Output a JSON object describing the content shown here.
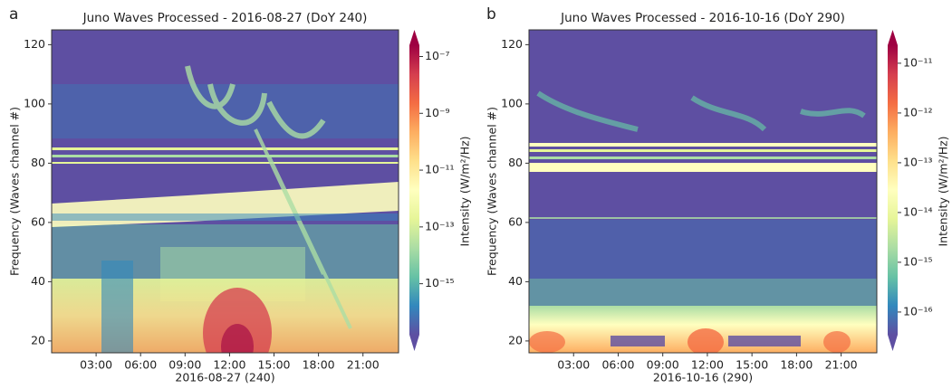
{
  "chart_data": [
    {
      "type": "spectrogram",
      "panel_label": "a",
      "title": "Juno Waves Processed -  2016-08-27 (DoY 240)",
      "xlabel": "2016-08-27 (240)",
      "ylabel": "Frequency (Waves channel #)",
      "xlim": [
        0,
        23.4
      ],
      "xticks": [
        {
          "value": 3,
          "label": "03:00"
        },
        {
          "value": 6,
          "label": "06:00"
        },
        {
          "value": 9,
          "label": "09:00"
        },
        {
          "value": 12,
          "label": "12:00"
        },
        {
          "value": 15,
          "label": "15:00"
        },
        {
          "value": 18,
          "label": "18:00"
        },
        {
          "value": 21,
          "label": "21:00"
        }
      ],
      "ylim": [
        16,
        125
      ],
      "yticks": [
        20,
        40,
        60,
        80,
        100,
        120
      ],
      "colors": [
        "#5e4fa2",
        "#3288bd",
        "#66c2a5",
        "#abdda4",
        "#e6f598",
        "#ffffbf",
        "#fee08b",
        "#fdae61",
        "#f46d43",
        "#d53e4f",
        "#9e0142"
      ],
      "colorbar": {
        "label": "Intensity (W/m²/Hz)",
        "scale": "log",
        "lim": [
          1.6e-17,
          2.5e-07
        ],
        "ticks": [
          {
            "value": 1e-15,
            "label": "10⁻¹⁵"
          },
          {
            "value": 1e-13,
            "label": "10⁻¹³"
          },
          {
            "value": 1e-11,
            "label": "10⁻¹¹"
          },
          {
            "value": 1e-09,
            "label": "10⁻⁹"
          },
          {
            "value": 1e-07,
            "label": "10⁻⁷"
          }
        ]
      }
    },
    {
      "type": "spectrogram",
      "panel_label": "b",
      "title": "Juno Waves Processed -  2016-10-16 (DoY 290)",
      "xlabel": "2016-10-16 (290)",
      "ylabel": "Frequency (Waves channel #)",
      "xlim": [
        0,
        23.4
      ],
      "xticks": [
        {
          "value": 3,
          "label": "03:00"
        },
        {
          "value": 6,
          "label": "06:00"
        },
        {
          "value": 9,
          "label": "09:00"
        },
        {
          "value": 12,
          "label": "12:00"
        },
        {
          "value": 15,
          "label": "15:00"
        },
        {
          "value": 18,
          "label": "18:00"
        },
        {
          "value": 21,
          "label": "21:00"
        }
      ],
      "ylim": [
        16,
        125
      ],
      "yticks": [
        20,
        40,
        60,
        80,
        100,
        120
      ],
      "colors": [
        "#5e4fa2",
        "#3288bd",
        "#66c2a5",
        "#abdda4",
        "#e6f598",
        "#ffffbf",
        "#fee08b",
        "#fdae61",
        "#f46d43",
        "#d53e4f",
        "#9e0142"
      ],
      "colorbar": {
        "label": "Intensity (W/m²/Hz)",
        "scale": "log",
        "lim": [
          3.5e-17,
          2.3e-11
        ],
        "ticks": [
          {
            "value": 1e-16,
            "label": "10⁻¹⁶"
          },
          {
            "value": 1e-15,
            "label": "10⁻¹⁵"
          },
          {
            "value": 1e-14,
            "label": "10⁻¹⁴"
          },
          {
            "value": 1e-13,
            "label": "10⁻¹³"
          },
          {
            "value": 1e-12,
            "label": "10⁻¹²"
          },
          {
            "value": 1e-11,
            "label": "10⁻¹¹"
          }
        ]
      }
    }
  ]
}
